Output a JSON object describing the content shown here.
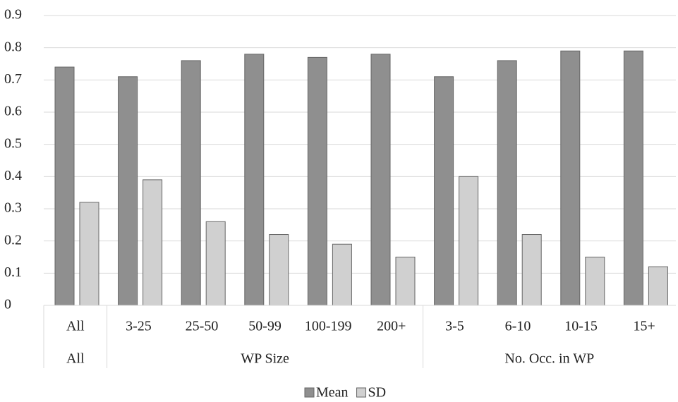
{
  "chart_data": {
    "type": "bar",
    "categories": [
      "All",
      "3-25",
      "25-50",
      "50-99",
      "100-199",
      "200+",
      "3-5",
      "6-10",
      "10-15",
      "15+"
    ],
    "category_groups": [
      {
        "name": "All",
        "size": 1
      },
      {
        "name": "WP Size",
        "size": 5
      },
      {
        "name": "No. Occ. in WP",
        "size": 4
      }
    ],
    "series": [
      {
        "name": "Mean",
        "color": "#8f8f8f",
        "values": [
          0.74,
          0.71,
          0.76,
          0.78,
          0.77,
          0.78,
          0.71,
          0.76,
          0.79,
          0.79
        ]
      },
      {
        "name": "SD",
        "color": "#d0d0d0",
        "values": [
          0.32,
          0.39,
          0.26,
          0.22,
          0.19,
          0.15,
          0.4,
          0.22,
          0.15,
          0.12
        ]
      }
    ],
    "ylim": [
      0,
      0.9
    ],
    "yticks": [
      0,
      0.1,
      0.2,
      0.3,
      0.4,
      0.5,
      0.6,
      0.7,
      0.8,
      0.9
    ],
    "grid": true,
    "legend": "bottom"
  }
}
